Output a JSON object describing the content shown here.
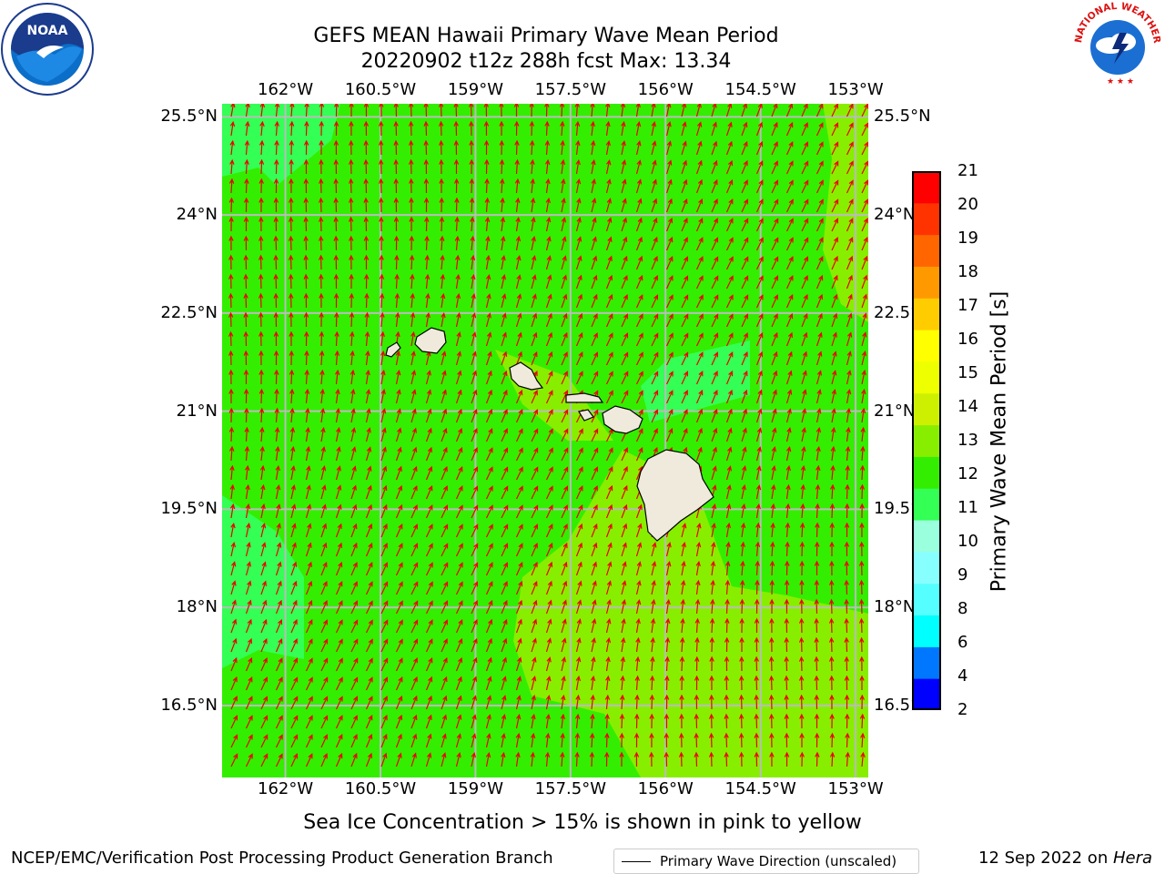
{
  "title": {
    "line1": "GEFS MEAN Hawaii Primary Wave Mean Period",
    "line2": "20220902 t12z 288h fcst   Max: 13.34"
  },
  "map": {
    "lon_labels": [
      "162°W",
      "160.5°W",
      "159°W",
      "157.5°W",
      "156°W",
      "154.5°W",
      "153°W"
    ],
    "lon_values": [
      -162,
      -160.5,
      -159,
      -157.5,
      -156,
      -154.5,
      -153
    ],
    "lat_labels": [
      "25.5°N",
      "24°N",
      "22.5°N",
      "21°N",
      "19.5°N",
      "18°N",
      "16.5°N"
    ],
    "lat_values": [
      25.5,
      24,
      22.5,
      21,
      19.5,
      18,
      16.5
    ],
    "lon_range": [
      -163,
      -152.8
    ],
    "lat_range": [
      15.4,
      25.7
    ],
    "background_fill": "#33ee00",
    "arrow_color": "#ee0000",
    "grid_color": "#bbbbbb",
    "land_color": "#efeadc",
    "legend_label": "Primary Wave Direction (unscaled)"
  },
  "colorbar": {
    "label": "Primary Wave Mean Period [s]",
    "levels": [
      2,
      4,
      6,
      8,
      9,
      10,
      11,
      12,
      13,
      14,
      15,
      16,
      17,
      18,
      19,
      20,
      21
    ],
    "level_labels": [
      "2",
      "4",
      "6",
      "8",
      "9",
      "10",
      "11",
      "12",
      "13",
      "14",
      "15",
      "16",
      "17",
      "18",
      "19",
      "20",
      "21"
    ],
    "colors": [
      "#0000ff",
      "#0077ff",
      "#00ffff",
      "#55ffff",
      "#88ffff",
      "#99ffdd",
      "#33ff55",
      "#33ee00",
      "#88ee00",
      "#ccf000",
      "#eeff00",
      "#ffff00",
      "#ffcc00",
      "#ff9900",
      "#ff6600",
      "#ff3300",
      "#ff0000"
    ]
  },
  "note": "Sea Ice Concentration > 15% is shown in pink to yellow",
  "footer": {
    "left": "NCEP/EMC/Verification Post Processing Product Generation Branch",
    "right_date": "12 Sep 2022 on ",
    "right_machine": "Hera"
  },
  "logos": {
    "noaa_text": "NOAA",
    "nws_text": "NATIONAL WEATHER SERVICE"
  }
}
